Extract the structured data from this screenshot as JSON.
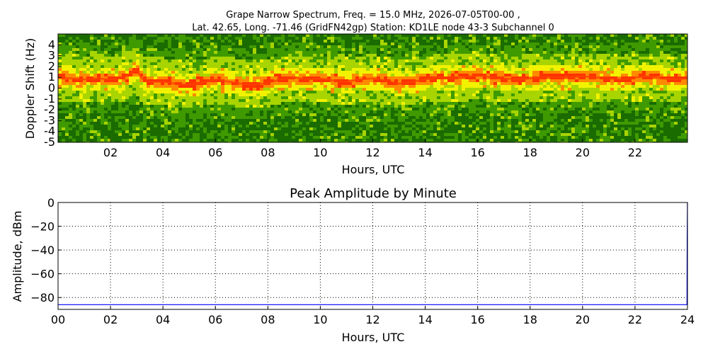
{
  "chart_data": [
    {
      "type": "heatmap",
      "title_lines": [
        "Grape Narrow Spectrum, Freq. = 15.0 MHz, 2026-07-05T00-00 ,",
        "Lat.  42.65, Long. -71.46 (GridFN42gp) Station: KD1LE node 43-3 Subchannel 0"
      ],
      "xlabel": "Hours, UTC",
      "ylabel": "Doppler Shift (Hz)",
      "xlim": [
        0,
        24
      ],
      "ylim": [
        -5,
        5
      ],
      "x_ticks": [
        {
          "value": 2,
          "label": "02"
        },
        {
          "value": 4,
          "label": "04"
        },
        {
          "value": 6,
          "label": "06"
        },
        {
          "value": 8,
          "label": "08"
        },
        {
          "value": 10,
          "label": "10"
        },
        {
          "value": 12,
          "label": "12"
        },
        {
          "value": 14,
          "label": "14"
        },
        {
          "value": 16,
          "label": "16"
        },
        {
          "value": 18,
          "label": "18"
        },
        {
          "value": 20,
          "label": "20"
        },
        {
          "value": 22,
          "label": "22"
        }
      ],
      "y_ticks": [
        {
          "value": 4,
          "label": "4"
        },
        {
          "value": 3,
          "label": "3"
        },
        {
          "value": 2,
          "label": "2"
        },
        {
          "value": 1,
          "label": "1"
        },
        {
          "value": 0,
          "label": "0"
        },
        {
          "value": -1,
          "label": "-1"
        },
        {
          "value": -2,
          "label": "-2"
        },
        {
          "value": -3,
          "label": "-3"
        },
        {
          "value": -4,
          "label": "-4"
        },
        {
          "value": -5,
          "label": "-5"
        }
      ],
      "colormap": [
        "#1a6b00",
        "#3f9a00",
        "#a8d400",
        "#f2f200",
        "#ff8a00",
        "#ff3300"
      ],
      "peak_doppler_trace": {
        "x": [
          0,
          0.5,
          1,
          1.5,
          2,
          2.5,
          2.8,
          3.0,
          3.2,
          3.5,
          4,
          4.5,
          5,
          5.5,
          6,
          6.5,
          7,
          7.5,
          8,
          8.5,
          9,
          9.5,
          10,
          10.5,
          11,
          11.5,
          12,
          12.5,
          13,
          13.5,
          14,
          14.5,
          15,
          15.5,
          16,
          16.5,
          17,
          17.5,
          18,
          18.5,
          19,
          19.5,
          20,
          20.5,
          21,
          21.5,
          22,
          22.5,
          23,
          23.5,
          24
        ],
        "y": [
          1.0,
          0.9,
          0.8,
          0.9,
          0.8,
          1.0,
          1.4,
          1.7,
          0.9,
          0.6,
          0.6,
          0.4,
          0.3,
          0.5,
          0.8,
          0.6,
          0.4,
          0.3,
          0.5,
          0.8,
          1.0,
          0.8,
          0.9,
          0.7,
          0.6,
          0.8,
          0.9,
          0.7,
          0.4,
          0.6,
          0.8,
          1.0,
          0.9,
          1.0,
          1.2,
          1.0,
          0.9,
          0.8,
          0.9,
          1.0,
          1.0,
          1.0,
          1.1,
          1.0,
          0.9,
          0.8,
          1.0,
          1.1,
          0.9,
          0.8,
          0.9
        ]
      }
    },
    {
      "type": "line",
      "title": "Peak Amplitude by Minute",
      "xlabel": "Hours, UTC",
      "ylabel": "Amplitude, dBm",
      "xlim": [
        0,
        24
      ],
      "ylim": [
        -90,
        0
      ],
      "grid": true,
      "x_ticks": [
        {
          "value": 0,
          "label": "00"
        },
        {
          "value": 2,
          "label": "02"
        },
        {
          "value": 4,
          "label": "04"
        },
        {
          "value": 6,
          "label": "06"
        },
        {
          "value": 8,
          "label": "08"
        },
        {
          "value": 10,
          "label": "10"
        },
        {
          "value": 12,
          "label": "12"
        },
        {
          "value": 14,
          "label": "14"
        },
        {
          "value": 16,
          "label": "16"
        },
        {
          "value": 18,
          "label": "18"
        },
        {
          "value": 20,
          "label": "20"
        },
        {
          "value": 22,
          "label": "22"
        },
        {
          "value": 24,
          "label": "24"
        }
      ],
      "y_ticks": [
        {
          "value": 0,
          "label": "0"
        },
        {
          "value": -20,
          "label": "−20"
        },
        {
          "value": -40,
          "label": "−40"
        },
        {
          "value": -60,
          "label": "−60"
        },
        {
          "value": -80,
          "label": "−80"
        }
      ],
      "series": [
        {
          "color": "#0000ff",
          "x": [
            0,
            2,
            4,
            6,
            8,
            10,
            12,
            14,
            16,
            18,
            20,
            22,
            23.98,
            23.99,
            24
          ],
          "y": [
            -86,
            -86,
            -86,
            -86,
            -86,
            -86,
            -86,
            -86,
            -86,
            -86,
            -86,
            -86,
            -86,
            -30,
            0
          ]
        }
      ]
    }
  ]
}
